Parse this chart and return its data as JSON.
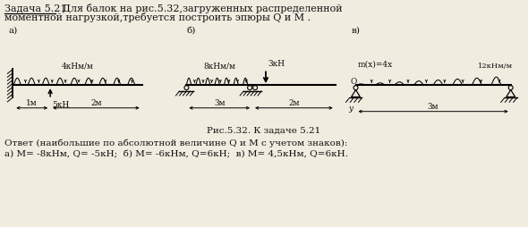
{
  "title_underline": "Задача 5.21.",
  "title_rest": "  Для балок на рис.5.32,загруженных распределенной",
  "title_line2": "моментной нагрузкой,требуется построить эпюры Q и М .",
  "fig_caption": "Рис.5.32. К задаче 5.21",
  "answer_line1": "Ответ (наибольшие по абсолютной величине Q и М с учетом знаков):",
  "answer_line2": "а) М= -8кНм, Q= -5кН;  б) М= -6кНм, Q=6кН;  в) М= 4,5кНм, Q=6кН.",
  "bg_color": "#f0ece0",
  "text_color": "#111111",
  "label_a": "а)",
  "label_b": "б)",
  "label_v": "в)",
  "load_a": "4кНм/м",
  "load_b": "8кНм/м",
  "force_b": "3кН",
  "force_a": "5кН",
  "load_v1": "m(x)=4x",
  "load_v2": "12кНм/м",
  "dim_a1": "1м",
  "dim_a2": "2м",
  "dim_b1": "3м",
  "dim_b2": "2м",
  "dim_v": "3м",
  "label_o": "O",
  "label_y": "y"
}
